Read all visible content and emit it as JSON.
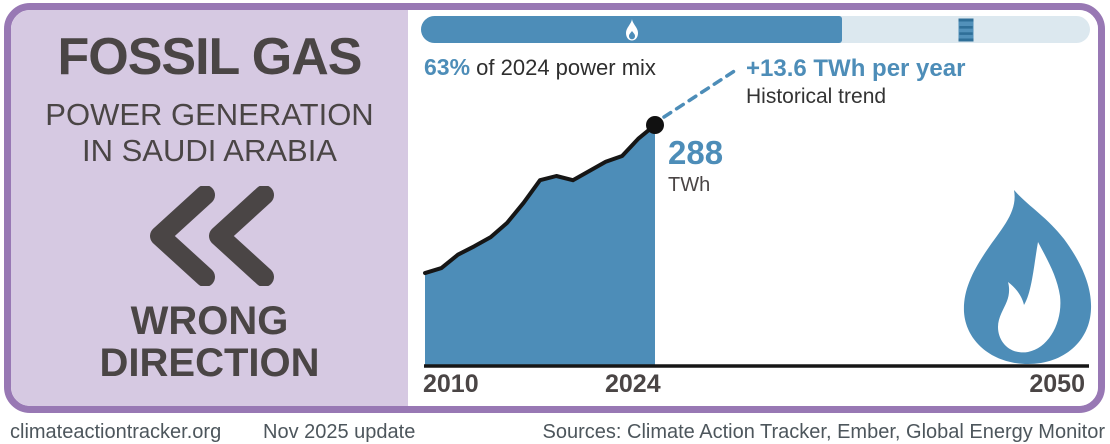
{
  "left_panel": {
    "title": "FOSSIL GAS",
    "subtitle_line1": "POWER GENERATION",
    "subtitle_line2": "IN SAUDI ARABIA",
    "verdict_line1": "WRONG",
    "verdict_line2": "DIRECTION"
  },
  "power_mix_bar": {
    "fill_percent": 63,
    "percent_label": "63%",
    "caption_rest": "of 2024 power mix",
    "filled_icon": "flame-icon",
    "empty_icon": "oil-barrel-icon"
  },
  "trend_annotation": {
    "value": "+13.6 TWh per year",
    "label": "Historical trend"
  },
  "current_annotation": {
    "value": "288",
    "unit": "TWh"
  },
  "x_axis": {
    "label_start": "2010",
    "label_current": "2024",
    "label_end": "2050"
  },
  "chart_data": {
    "type": "area",
    "title": "Fossil gas power generation in Saudi Arabia",
    "x": [
      2010,
      2011,
      2012,
      2013,
      2014,
      2015,
      2016,
      2017,
      2018,
      2019,
      2020,
      2021,
      2022,
      2023,
      2024
    ],
    "values": [
      111,
      117,
      133,
      143,
      154,
      171,
      195,
      222,
      227,
      222,
      233,
      244,
      251,
      272,
      288
    ],
    "unit": "TWh",
    "x_range": [
      2010,
      2050
    ],
    "y_range": [
      0,
      288
    ],
    "highlight_point": {
      "x": 2024,
      "value": 288
    },
    "trend_rate_twh_per_year": 13.6,
    "share_of_power_mix_2024_percent": 63,
    "grid": false,
    "legend": false
  },
  "footer": {
    "site": "climateactiontracker.org",
    "update": "Nov 2025 update",
    "sources": "Sources: Climate Action Tracker, Ember, Global Energy Monitor"
  },
  "colors": {
    "accent_blue": "#4d8db8",
    "bar_track": "#dce8ef",
    "panel_lavender": "#d6c9e2",
    "border_purple": "#9878b4",
    "text_dark": "#4a4545",
    "line_black": "#161616"
  }
}
